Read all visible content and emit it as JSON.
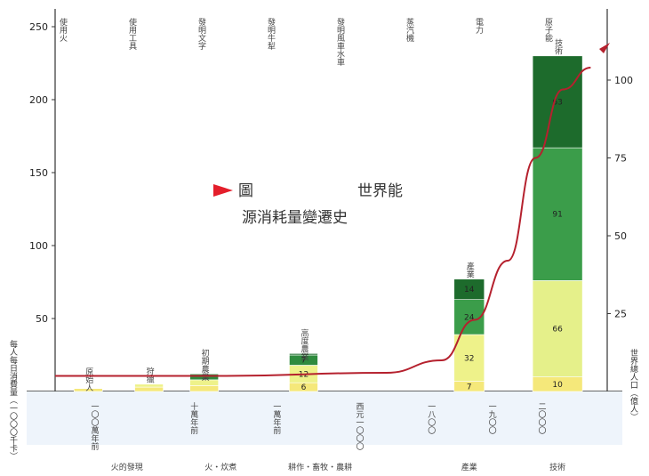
{
  "chart_data": {
    "type": "bar",
    "title_line1": "世界能",
    "title_line2": "源消耗量變遷史",
    "title_prefix": "圖",
    "yleft": {
      "ticks": [
        50,
        100,
        150,
        200,
        250
      ],
      "ylim": [
        0,
        250
      ]
    },
    "yright": {
      "ticks": [
        25,
        50,
        75,
        100
      ],
      "ylim": [
        0,
        100
      ]
    },
    "left_axis_label": "每人每日消費量（一〇〇〇千卡）",
    "right_axis_label": "世界總人口（億人）",
    "eras": [
      {
        "name": "原始人",
        "x": 0.06,
        "top_label": "原始人",
        "total": 2,
        "segments": [
          {
            "value": 2,
            "color": "#f5e87a",
            "label": "2"
          }
        ]
      },
      {
        "name": "狩獵",
        "x": 0.17,
        "top_label": "狩獵",
        "total": 5,
        "segments": [
          {
            "value": 3,
            "color": "#f5e87a",
            "label": "3"
          },
          {
            "value": 2,
            "color": "#eef28a",
            "label": "2"
          }
        ]
      },
      {
        "name": "初期農業",
        "x": 0.27,
        "top_label": "初期農業",
        "total": 12,
        "segments": [
          {
            "value": 4,
            "color": "#f5e87a",
            "label": "4"
          },
          {
            "value": 4,
            "color": "#eef28a",
            "label": "4"
          },
          {
            "value": 4,
            "color": "#2e8b3e",
            "label": "4"
          }
        ]
      },
      {
        "name": "高度農業",
        "x": 0.45,
        "top_label": "高度農業",
        "total": 26,
        "segments": [
          {
            "value": 6,
            "color": "#f5e87a",
            "label": "6"
          },
          {
            "value": 12,
            "color": "#eef28a",
            "label": "12"
          },
          {
            "value": 7,
            "color": "#2e8b3e",
            "label": "7"
          },
          {
            "value": 1,
            "color": "#1d6b2c",
            "label": "1"
          }
        ]
      },
      {
        "name": "產業",
        "x": 0.75,
        "top_label": "產業",
        "total": 77,
        "segments": [
          {
            "value": 7,
            "color": "#f5e87a",
            "label": "7"
          },
          {
            "value": 32,
            "color": "#eef28a",
            "label": "32"
          },
          {
            "value": 24,
            "color": "#3b9d4a",
            "label": "24"
          },
          {
            "value": 14,
            "color": "#1d6b2c",
            "label": "14"
          }
        ]
      },
      {
        "name": "技術",
        "x": 0.91,
        "top_label": "技術",
        "total": 230,
        "segments": [
          {
            "value": 10,
            "color": "#f5e87a",
            "label": "10"
          },
          {
            "value": 66,
            "color": "#e5f08a",
            "label": "66"
          },
          {
            "value": 91,
            "color": "#3b9d4a",
            "label": "91"
          },
          {
            "value": 63,
            "color": "#1d6b2c",
            "label": "63"
          }
        ]
      }
    ],
    "population_curve": [
      {
        "x": 0.0,
        "y": 5
      },
      {
        "x": 0.3,
        "y": 5
      },
      {
        "x": 0.6,
        "y": 6
      },
      {
        "x": 0.7,
        "y": 10
      },
      {
        "x": 0.76,
        "y": 23
      },
      {
        "x": 0.82,
        "y": 42
      },
      {
        "x": 0.87,
        "y": 75
      },
      {
        "x": 0.92,
        "y": 97
      },
      {
        "x": 0.97,
        "y": 104
      }
    ],
    "era_footer": [
      "火的發現",
      "火・炊煮",
      "耕作・畜牧・農耕",
      "產業",
      "技術"
    ],
    "timeline_labels": [
      "一〇〇萬年前",
      "十萬年前",
      "一萬年前",
      "西元一〇〇〇",
      "一八〇〇",
      "一九〇〇",
      "二〇〇〇"
    ],
    "top_events": [
      "使用火",
      "使用工具",
      "發明文字",
      "發明牛犁",
      "發明風車水車",
      "蒸汽機",
      "電力",
      "原子能"
    ]
  }
}
